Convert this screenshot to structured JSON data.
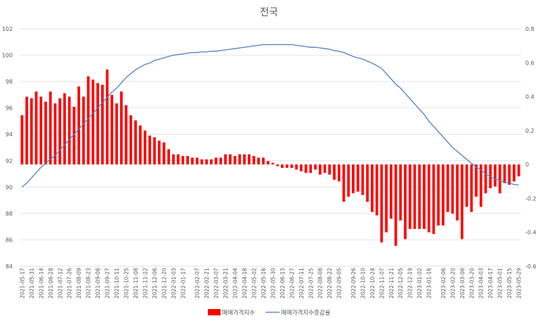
{
  "chart_data": {
    "type": "bar+line",
    "title": "전국",
    "x": [
      "2021-05-17",
      "2021-05-24",
      "2021-05-31",
      "2021-06-07",
      "2021-06-14",
      "2021-06-21",
      "2021-06-28",
      "2021-07-05",
      "2021-07-12",
      "2021-07-19",
      "2021-07-26",
      "2021-08-02",
      "2021-08-09",
      "2021-08-16",
      "2021-08-23",
      "2021-08-30",
      "2021-09-06",
      "2021-09-13",
      "2021-09-27",
      "2021-10-04",
      "2021-10-11",
      "2021-10-18",
      "2021-10-25",
      "2021-11-01",
      "2021-11-08",
      "2021-11-15",
      "2021-11-22",
      "2021-11-29",
      "2021-12-06",
      "2021-12-13",
      "2021-12-20",
      "2021-12-27",
      "2022-01-03",
      "2022-01-10",
      "2022-01-17",
      "2022-01-24",
      "2022-01-31",
      "2022-02-07",
      "2022-02-14",
      "2022-02-21",
      "2022-02-28",
      "2022-03-07",
      "2022-03-14",
      "2022-03-21",
      "2022-03-28",
      "2022-04-04",
      "2022-04-11",
      "2022-04-18",
      "2022-04-25",
      "2022-05-02",
      "2022-05-09",
      "2022-05-16",
      "2022-05-23",
      "2022-05-30",
      "2022-06-06",
      "2022-06-13",
      "2022-06-20",
      "2022-06-27",
      "2022-07-04",
      "2022-07-11",
      "2022-07-18",
      "2022-07-25",
      "2022-08-01",
      "2022-08-08",
      "2022-08-15",
      "2022-08-22",
      "2022-08-29",
      "2022-09-05",
      "2022-09-12",
      "2022-09-19",
      "2022-09-26",
      "2022-10-03",
      "2022-10-10",
      "2022-10-17",
      "2022-10-24",
      "2022-10-31",
      "2022-11-07",
      "2022-11-14",
      "2022-11-21",
      "2022-11-28",
      "2022-12-05",
      "2022-12-12",
      "2022-12-19",
      "2022-12-26",
      "2023-01-02",
      "2023-01-09",
      "2023-01-16",
      "2023-01-23",
      "2023-01-30",
      "2023-02-06",
      "2023-02-13",
      "2023-02-20",
      "2023-02-27",
      "2023-03-06",
      "2023-03-13",
      "2023-03-20",
      "2023-03-27",
      "2023-04-03",
      "2023-04-10",
      "2023-04-17",
      "2023-04-24",
      "2023-05-01",
      "2023-05-08",
      "2023-05-15",
      "2023-05-22",
      "2023-05-29"
    ],
    "x_tick_labels": [
      "2021-05-17",
      "2021-05-31",
      "2021-06-14",
      "2021-06-28",
      "2021-07-12",
      "2021-07-26",
      "2021-08-09",
      "2021-08-23",
      "2021-09-06",
      "2021-09-27",
      "2021-10-11",
      "2021-10-25",
      "2021-11-08",
      "2021-11-22",
      "2021-12-06",
      "2021-12-20",
      "2022-01-03",
      "2022-01-17",
      "2022-02-07",
      "2022-02-21",
      "2022-03-07",
      "2022-03-21",
      "2022-04-04",
      "2022-04-18",
      "2022-05-02",
      "2022-05-16",
      "2022-05-30",
      "2022-06-13",
      "2022-06-27",
      "2022-07-11",
      "2022-07-25",
      "2022-08-08",
      "2022-08-22",
      "2022-09-05",
      "2022-09-26",
      "2022-10-10",
      "2022-10-24",
      "2022-11-07",
      "2022-11-21",
      "2022-12-05",
      "2022-12-19",
      "2023-01-02",
      "2023-01-16",
      "2023-02-06",
      "2023-02-20",
      "2023-03-06",
      "2023-03-20",
      "2023-04-03",
      "2023-04-17",
      "2023-05-01",
      "2023-05-15",
      "2023-05-29"
    ],
    "series": [
      {
        "name": "매매가격지수",
        "kind": "bar",
        "axis": "right",
        "color": "#ff0000",
        "values": [
          0.29,
          0.4,
          0.39,
          0.43,
          0.4,
          0.37,
          0.43,
          0.36,
          0.39,
          0.42,
          0.4,
          0.34,
          0.46,
          0.4,
          0.52,
          0.5,
          0.48,
          0.47,
          0.56,
          0.41,
          0.36,
          0.43,
          0.35,
          0.29,
          0.26,
          0.23,
          0.2,
          0.17,
          0.16,
          0.14,
          0.13,
          0.09,
          0.06,
          0.06,
          0.05,
          0.05,
          0.04,
          0.04,
          0.03,
          0.03,
          0.03,
          0.04,
          0.04,
          0.06,
          0.06,
          0.05,
          0.06,
          0.06,
          0.06,
          0.05,
          0.04,
          0.04,
          0.02,
          0.01,
          -0.01,
          -0.02,
          -0.02,
          -0.02,
          -0.03,
          -0.04,
          -0.05,
          -0.05,
          -0.03,
          -0.06,
          -0.05,
          -0.06,
          -0.09,
          -0.1,
          -0.22,
          -0.19,
          -0.17,
          -0.16,
          -0.18,
          -0.22,
          -0.28,
          -0.3,
          -0.46,
          -0.4,
          -0.32,
          -0.48,
          -0.33,
          -0.44,
          -0.38,
          -0.38,
          -0.38,
          -0.38,
          -0.4,
          -0.41,
          -0.36,
          -0.36,
          -0.28,
          -0.29,
          -0.33,
          -0.44,
          -0.25,
          -0.28,
          -0.19,
          -0.25,
          -0.17,
          -0.14,
          -0.13,
          -0.17,
          -0.11,
          -0.12,
          -0.1,
          -0.07
        ]
      },
      {
        "name": "매매가격지수증감율",
        "kind": "line",
        "axis": "left",
        "color": "#4f81bd",
        "values": [
          90.0,
          90.3,
          90.7,
          91.1,
          91.5,
          91.8,
          92.1,
          92.4,
          92.8,
          93.2,
          93.6,
          94.0,
          94.4,
          94.8,
          95.2,
          95.6,
          96.0,
          96.4,
          96.8,
          97.2,
          97.5,
          97.9,
          98.3,
          98.6,
          98.9,
          99.1,
          99.3,
          99.4,
          99.6,
          99.7,
          99.8,
          99.9,
          100.0,
          100.05,
          100.1,
          100.15,
          100.2,
          100.2,
          100.25,
          100.25,
          100.3,
          100.3,
          100.35,
          100.4,
          100.45,
          100.5,
          100.55,
          100.6,
          100.65,
          100.7,
          100.75,
          100.8,
          100.8,
          100.8,
          100.8,
          100.8,
          100.8,
          100.8,
          100.75,
          100.7,
          100.65,
          100.6,
          100.6,
          100.55,
          100.5,
          100.45,
          100.35,
          100.3,
          100.2,
          100.05,
          99.9,
          99.8,
          99.7,
          99.55,
          99.4,
          99.2,
          99.0,
          98.6,
          98.2,
          97.8,
          97.5,
          97.1,
          96.7,
          96.3,
          95.9,
          95.5,
          95.0,
          94.6,
          94.2,
          93.8,
          93.4,
          93.0,
          92.7,
          92.4,
          92.1,
          91.8,
          91.5,
          91.3,
          91.0,
          90.8,
          90.6,
          90.5,
          90.4,
          90.3,
          90.2,
          90.15
        ]
      }
    ],
    "left_axis": {
      "min": 84,
      "max": 102,
      "ticks": [
        84,
        86,
        88,
        90,
        92,
        94,
        96,
        98,
        100,
        102
      ]
    },
    "right_axis": {
      "min": -0.6,
      "max": 0.8,
      "ticks": [
        -0.6,
        -0.4,
        -0.2,
        0,
        0.2,
        0.4,
        0.6,
        0.8
      ]
    },
    "right_tick_labels": [
      "-0.6",
      "-0.4",
      "-0.2",
      "0",
      "0.2",
      "0.4",
      "0.6",
      "0.8"
    ],
    "grid": true,
    "legend_position": "bottom"
  }
}
